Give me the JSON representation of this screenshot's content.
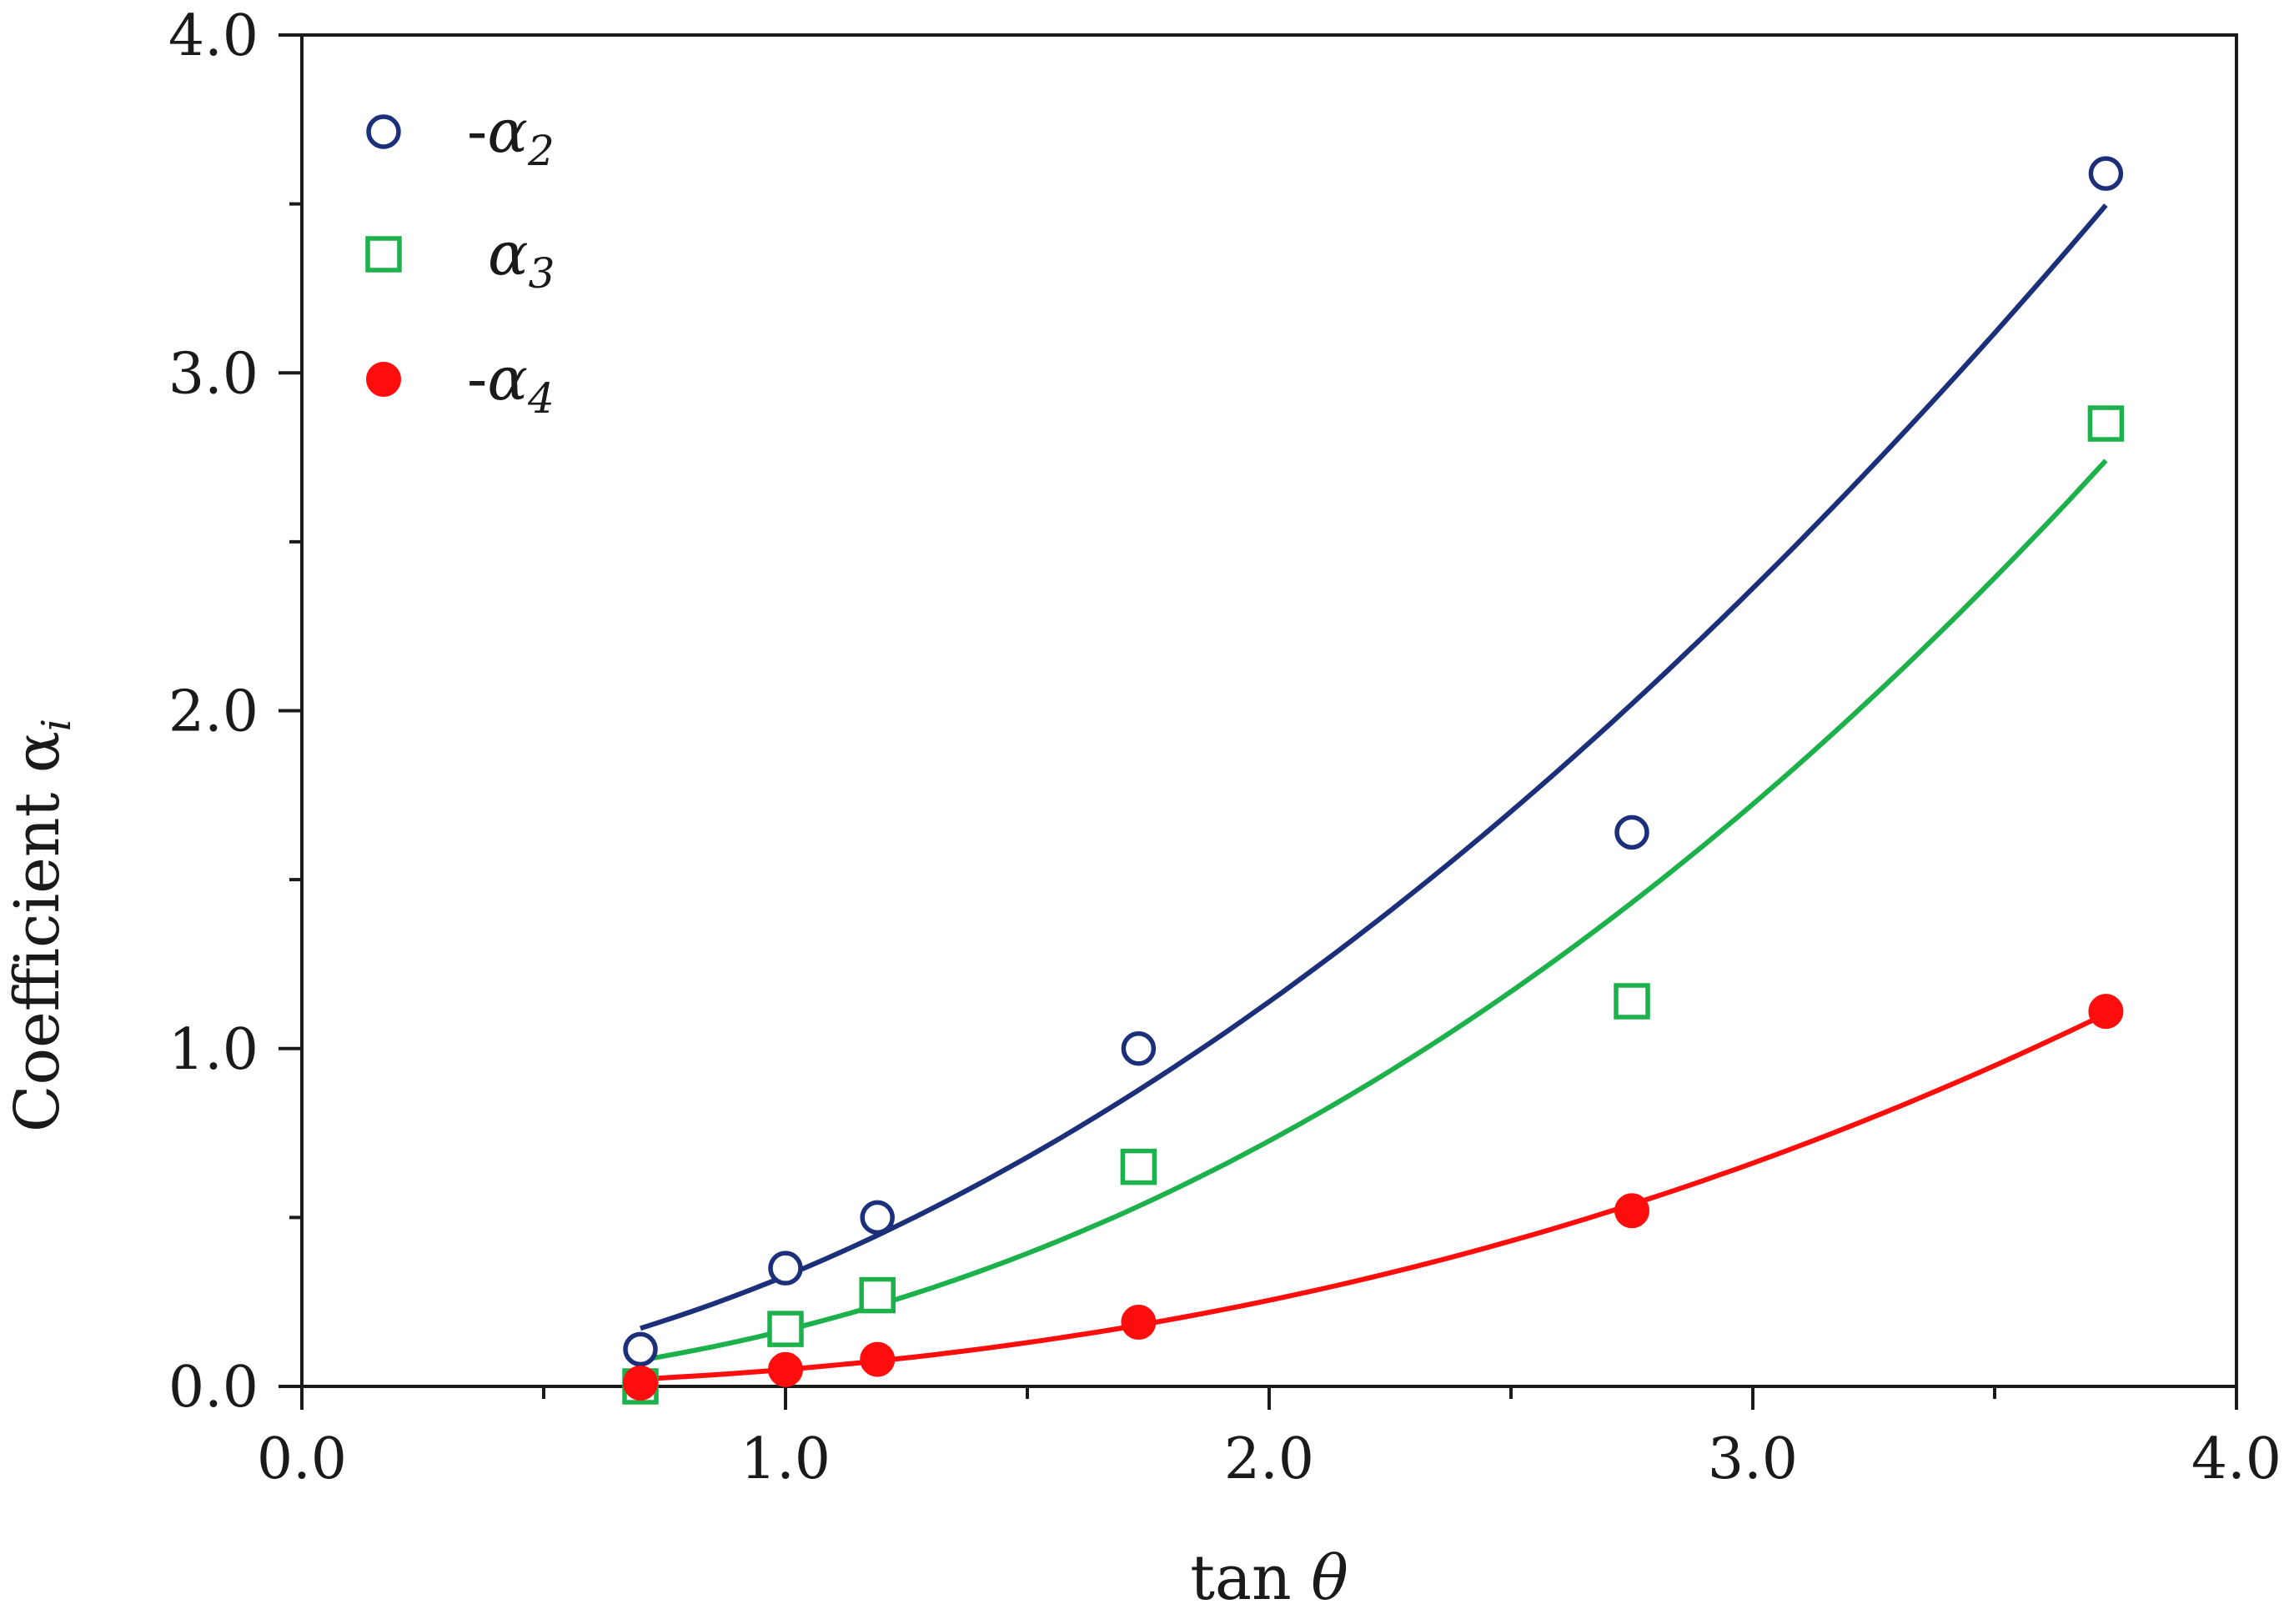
{
  "chart_data": {
    "type": "scatter",
    "title": "",
    "xlabel": "tan θ",
    "ylabel": "Coefficient α",
    "ylabel_subscript": "i",
    "xlim": [
      0,
      4
    ],
    "ylim": [
      0,
      4
    ],
    "x_major_ticks": [
      0,
      1,
      2,
      3,
      4
    ],
    "x_tick_labels": [
      "0.0",
      "1.0",
      "2.0",
      "3.0",
      "4.0"
    ],
    "x_minor_ticks": [
      0.5,
      1.5,
      2.5,
      3.5
    ],
    "y_major_ticks": [
      0,
      1,
      2,
      3,
      4
    ],
    "y_tick_labels": [
      "0.0",
      "1.0",
      "2.0",
      "3.0",
      "4.0"
    ],
    "y_minor_ticks": [
      0.5,
      1.5,
      2.5,
      3.5
    ],
    "grid": false,
    "legend_position": "top-left",
    "series": [
      {
        "name": "-α2",
        "legend_prefix": "-",
        "legend_symbol": "α",
        "legend_subscript": "2",
        "marker": "open-circle",
        "color": "#1c2f7a",
        "x": [
          0.7,
          1.0,
          1.19,
          1.73,
          2.75,
          3.73
        ],
        "y": [
          0.11,
          0.35,
          0.5,
          1.0,
          1.64,
          3.59
        ],
        "fit": {
          "type": "power",
          "a": 0.327,
          "b": 1.8,
          "x_range": [
            0.7,
            3.73
          ]
        }
      },
      {
        "name": "α3",
        "legend_prefix": "",
        "legend_symbol": "α",
        "legend_subscript": "3",
        "marker": "open-square",
        "color": "#1db14b",
        "x": [
          0.7,
          1.0,
          1.19,
          1.73,
          2.75,
          3.73
        ],
        "y": [
          0.0,
          0.17,
          0.27,
          0.65,
          1.14,
          2.85
        ],
        "fit": {
          "type": "power",
          "a": 0.166,
          "b": 2.13,
          "x_range": [
            0.7,
            3.73
          ]
        }
      },
      {
        "name": "-α4",
        "legend_prefix": "-",
        "legend_symbol": "α",
        "legend_subscript": "4",
        "marker": "filled-circle",
        "color": "#ff0d0d",
        "x": [
          0.7,
          1.0,
          1.19,
          1.73,
          2.75,
          3.73
        ],
        "y": [
          0.01,
          0.05,
          0.08,
          0.19,
          0.52,
          1.11
        ],
        "fit": {
          "type": "power",
          "a": 0.05,
          "b": 2.35,
          "x_range": [
            0.7,
            3.73
          ]
        }
      }
    ]
  }
}
